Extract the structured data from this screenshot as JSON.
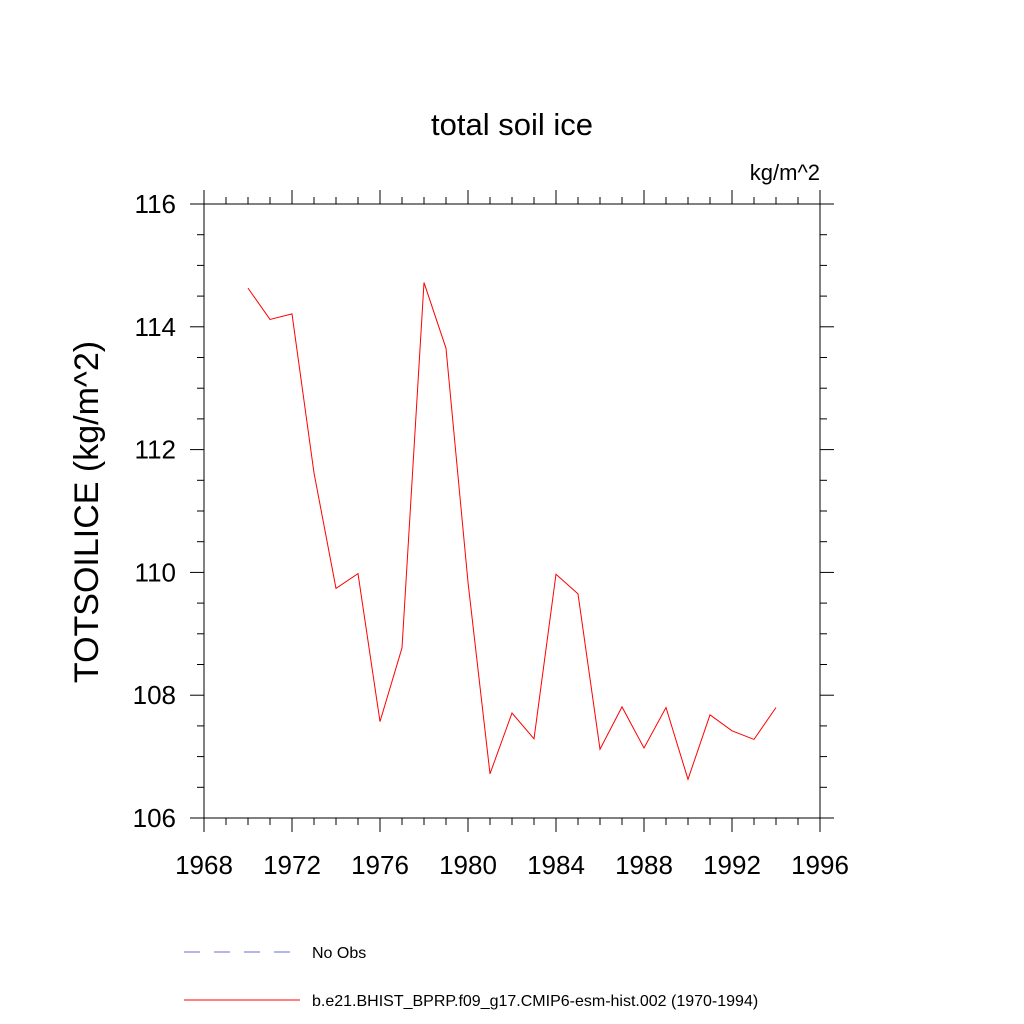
{
  "chart_data": {
    "type": "line",
    "title": "total soil ice",
    "units_label": "kg/m^2",
    "ylabel": "TOTSOILICE  (kg/m^2)",
    "xlabel": "",
    "xlim": [
      1968,
      1996
    ],
    "ylim": [
      106,
      116
    ],
    "x_ticks": [
      "1968",
      "1972",
      "1976",
      "1980",
      "1984",
      "1988",
      "1992",
      "1996"
    ],
    "y_ticks": [
      "106",
      "108",
      "110",
      "112",
      "114",
      "116"
    ],
    "grid": false,
    "legend_position": "bottom",
    "series": [
      {
        "name": "b.e21.BHIST_BPRP.f09_g17.CMIP6-esm-hist.002 (1970-1994)",
        "color": "#ff0000",
        "style": "solid",
        "x": [
          1970,
          1971,
          1972,
          1973,
          1974,
          1975,
          1976,
          1977,
          1978,
          1979,
          1980,
          1981,
          1982,
          1983,
          1984,
          1985,
          1986,
          1987,
          1988,
          1989,
          1990,
          1991,
          1992,
          1993,
          1994
        ],
        "values": [
          114.63,
          114.12,
          114.21,
          111.62,
          109.74,
          109.98,
          107.57,
          108.77,
          114.72,
          113.65,
          109.84,
          106.72,
          107.71,
          107.29,
          109.97,
          109.65,
          107.12,
          107.81,
          107.14,
          107.8,
          106.63,
          107.68,
          107.42,
          107.28,
          107.8
        ]
      }
    ],
    "legend": [
      {
        "label": "No Obs",
        "color": "#6b6bd6",
        "style": "dashed"
      },
      {
        "label": "b.e21.BHIST_BPRP.f09_g17.CMIP6-esm-hist.002 (1970-1994)",
        "color": "#ff0000",
        "style": "solid"
      }
    ]
  }
}
